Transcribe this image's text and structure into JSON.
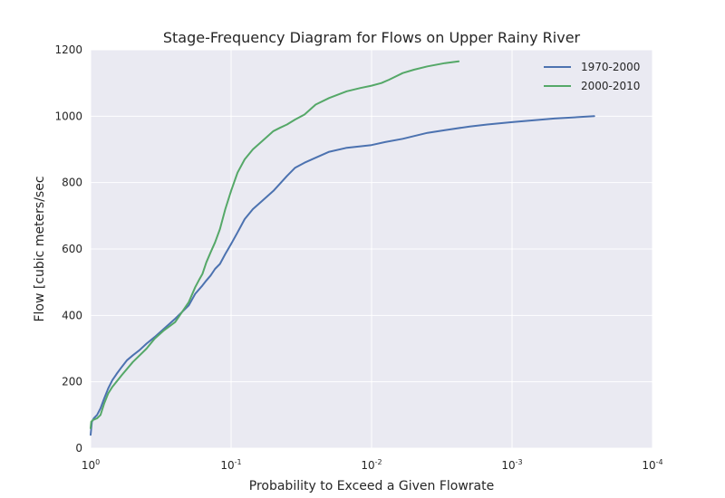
{
  "chart_data": {
    "type": "line",
    "title": "Stage-Frequency Diagram for Flows on Upper Rainy River",
    "xlabel": "Probability to Exceed a Given Flowrate",
    "ylabel": "Flow [cubic meters/sec",
    "x_scale": "log",
    "x_inverted": true,
    "xlim": [
      1,
      0.0001
    ],
    "ylim": [
      0,
      1200
    ],
    "x_ticks": [
      {
        "value": 1,
        "base": "10",
        "exp": "0"
      },
      {
        "value": 0.1,
        "base": "10",
        "exp": "-1"
      },
      {
        "value": 0.01,
        "base": "10",
        "exp": "-2"
      },
      {
        "value": 0.001,
        "base": "10",
        "exp": "-3"
      },
      {
        "value": 0.0001,
        "base": "10",
        "exp": "-4"
      }
    ],
    "y_ticks": [
      0,
      200,
      400,
      600,
      800,
      1000,
      1200
    ],
    "grid": true,
    "legend_position": "top-right",
    "background": "#eaeaf2",
    "series": [
      {
        "name": "1970-2000",
        "color": "#4c72b0",
        "x": [
          1,
          0.98,
          0.95,
          0.9,
          0.85,
          0.8,
          0.75,
          0.7,
          0.65,
          0.6,
          0.55,
          0.5,
          0.45,
          0.4,
          0.35,
          0.3,
          0.25,
          0.2,
          0.18,
          0.16,
          0.15,
          0.14,
          0.13,
          0.12,
          0.11,
          0.1,
          0.09,
          0.08,
          0.07,
          0.06,
          0.05,
          0.04,
          0.035,
          0.03,
          0.025,
          0.02,
          0.015,
          0.01,
          0.008,
          0.006,
          0.005,
          0.004,
          0.003,
          0.002,
          0.0015,
          0.001,
          0.0005,
          0.00026
        ],
        "y": [
          40,
          80,
          90,
          100,
          120,
          150,
          180,
          205,
          225,
          245,
          265,
          280,
          295,
          315,
          335,
          360,
          390,
          430,
          465,
          490,
          505,
          520,
          540,
          555,
          585,
          615,
          650,
          690,
          720,
          745,
          775,
          820,
          845,
          860,
          875,
          893,
          905,
          913,
          922,
          932,
          940,
          950,
          958,
          969,
          975,
          982,
          993,
          1000
        ]
      },
      {
        "name": "2000-2010",
        "color": "#55a868",
        "x": [
          1,
          0.99,
          0.96,
          0.9,
          0.85,
          0.8,
          0.75,
          0.7,
          0.6,
          0.5,
          0.4,
          0.35,
          0.3,
          0.25,
          0.2,
          0.18,
          0.17,
          0.16,
          0.15,
          0.14,
          0.13,
          0.12,
          0.11,
          0.1,
          0.09,
          0.08,
          0.07,
          0.06,
          0.05,
          0.045,
          0.04,
          0.035,
          0.03,
          0.025,
          0.02,
          0.015,
          0.012,
          0.01,
          0.0085,
          0.0075,
          0.006,
          0.005,
          0.004,
          0.003,
          0.0024
        ],
        "y": [
          60,
          80,
          85,
          90,
          100,
          135,
          165,
          185,
          220,
          260,
          300,
          330,
          355,
          380,
          440,
          485,
          505,
          525,
          560,
          590,
          620,
          660,
          720,
          775,
          830,
          870,
          900,
          925,
          955,
          965,
          975,
          990,
          1005,
          1035,
          1055,
          1075,
          1085,
          1092,
          1100,
          1110,
          1130,
          1140,
          1150,
          1160,
          1165
        ]
      }
    ]
  }
}
